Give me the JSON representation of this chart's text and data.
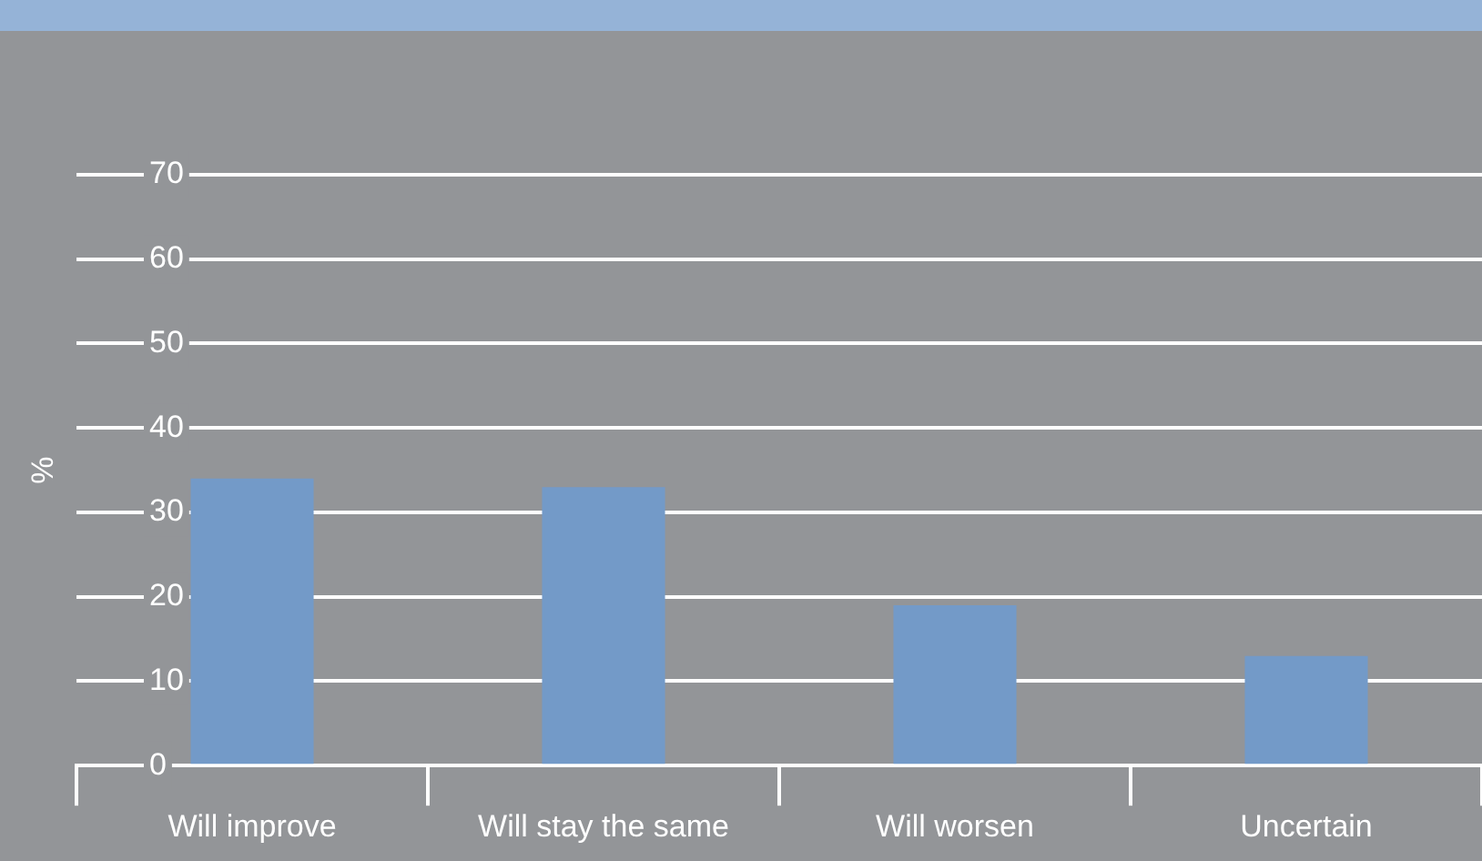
{
  "chart_data": {
    "type": "bar",
    "ylabel": "%",
    "categories": [
      "Will improve",
      "Will stay the same",
      "Will worsen",
      "Uncertain"
    ],
    "values": [
      34,
      33,
      19,
      13
    ],
    "color": "#739ac8",
    "ylim": [
      0,
      70
    ],
    "yticks": [
      0,
      10,
      20,
      30,
      40,
      50,
      60,
      70
    ],
    "grid": "y",
    "legend": false
  }
}
